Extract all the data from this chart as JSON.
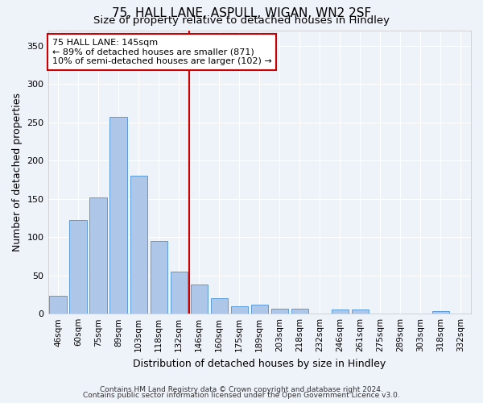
{
  "title": "75, HALL LANE, ASPULL, WIGAN, WN2 2SF",
  "subtitle": "Size of property relative to detached houses in Hindley",
  "xlabel": "Distribution of detached houses by size in Hindley",
  "ylabel": "Number of detached properties",
  "footer1": "Contains HM Land Registry data © Crown copyright and database right 2024.",
  "footer2": "Contains public sector information licensed under the Open Government Licence v3.0.",
  "bar_labels": [
    "46sqm",
    "60sqm",
    "75sqm",
    "89sqm",
    "103sqm",
    "118sqm",
    "132sqm",
    "146sqm",
    "160sqm",
    "175sqm",
    "189sqm",
    "203sqm",
    "218sqm",
    "232sqm",
    "246sqm",
    "261sqm",
    "275sqm",
    "289sqm",
    "303sqm",
    "318sqm",
    "332sqm"
  ],
  "bar_values": [
    23,
    122,
    152,
    257,
    180,
    95,
    55,
    38,
    20,
    10,
    12,
    7,
    6,
    0,
    5,
    5,
    0,
    0,
    0,
    3,
    0
  ],
  "bar_color": "#aec6e8",
  "bar_edge_color": "#5b9bd5",
  "vline_color": "#cc0000",
  "vline_x_index": 7,
  "annotation_text": "75 HALL LANE: 145sqm\n← 89% of detached houses are smaller (871)\n10% of semi-detached houses are larger (102) →",
  "annotation_box_color": "#ffffff",
  "annotation_box_edge": "#cc0000",
  "ylim": [
    0,
    370
  ],
  "yticks": [
    0,
    50,
    100,
    150,
    200,
    250,
    300,
    350
  ],
  "background_color": "#eef2f9",
  "grid_color": "#ffffff",
  "title_fontsize": 11,
  "subtitle_fontsize": 9.5,
  "ylabel_fontsize": 9,
  "xlabel_fontsize": 9,
  "annotation_fontsize": 8,
  "tick_fontsize": 7.5
}
